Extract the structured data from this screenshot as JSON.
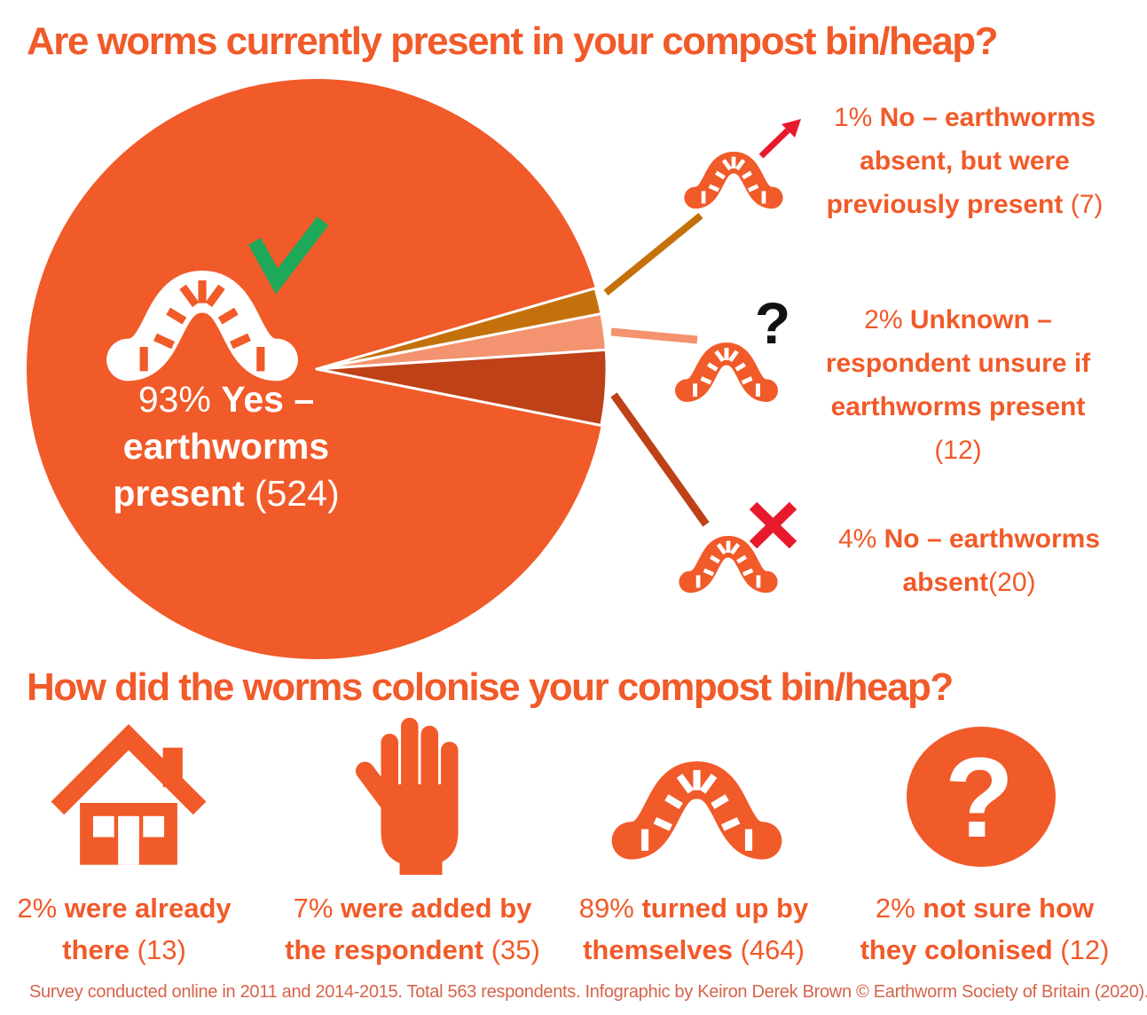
{
  "title1": "Are worms currently present in your compost bin/heap?",
  "title2": "How did the worms colonise your compost bin/heap?",
  "footer": "Survey conducted online in 2011 and 2014-2015. Total 563 respondents. Infographic by Keiron Derek Brown © Earthworm Society of Britain (2020).",
  "glyphs": {
    "question_mark": "?",
    "circle_question_mark": "?"
  },
  "colors": {
    "brand_orange": "#F15A29",
    "slice_amber": "#C4710C",
    "slice_salmon": "#F4936F",
    "slice_rust": "#BE4117",
    "check_green": "#1EA85A",
    "alert_red": "#E8192C",
    "footer_text": "#D5644A"
  },
  "pie_label": {
    "lines": [
      [
        {
          "t": "93% ",
          "b": 0
        },
        {
          "t": "Yes –",
          "b": 1
        }
      ],
      [
        {
          "t": "earthworms",
          "b": 1
        }
      ],
      [
        {
          "t": "present ",
          "b": 1
        },
        {
          "t": "(524)",
          "b": 0
        }
      ]
    ]
  },
  "callouts": [
    {
      "lines": [
        [
          {
            "t": "1% ",
            "b": 0
          },
          {
            "t": "No – earthworms",
            "b": 1
          }
        ],
        [
          {
            "t": "absent, but were",
            "b": 1
          }
        ],
        [
          {
            "t": "previously present ",
            "b": 1
          },
          {
            "t": "(7)",
            "b": 0
          }
        ]
      ]
    },
    {
      "lines": [
        [
          {
            "t": "2% ",
            "b": 0
          },
          {
            "t": "Unknown –",
            "b": 1
          }
        ],
        [
          {
            "t": "respondent unsure if",
            "b": 1
          }
        ],
        [
          {
            "t": "earthworms present",
            "b": 1
          }
        ],
        [
          {
            "t": "(12)",
            "b": 0
          }
        ]
      ]
    },
    {
      "lines": [
        [
          {
            "t": "4% ",
            "b": 0
          },
          {
            "t": "No – earthworms",
            "b": 1
          }
        ],
        [
          {
            "t": "absent",
            "b": 1
          },
          {
            "t": "(20)",
            "b": 0
          }
        ]
      ]
    }
  ],
  "captions": [
    {
      "lines": [
        [
          {
            "t": "2% ",
            "b": 0
          },
          {
            "t": "were already",
            "b": 1
          }
        ],
        [
          {
            "t": "there ",
            "b": 1
          },
          {
            "t": "(13)",
            "b": 0
          }
        ]
      ]
    },
    {
      "lines": [
        [
          {
            "t": "7% ",
            "b": 0
          },
          {
            "t": "were added by",
            "b": 1
          }
        ],
        [
          {
            "t": "the respondent ",
            "b": 1
          },
          {
            "t": "(35)",
            "b": 0
          }
        ]
      ]
    },
    {
      "lines": [
        [
          {
            "t": "89% ",
            "b": 0
          },
          {
            "t": "turned up by",
            "b": 1
          }
        ],
        [
          {
            "t": "themselves ",
            "b": 1
          },
          {
            "t": "(464)",
            "b": 0
          }
        ]
      ]
    },
    {
      "lines": [
        [
          {
            "t": "2% ",
            "b": 0
          },
          {
            "t": "not sure how",
            "b": 1
          }
        ],
        [
          {
            "t": "they colonised ",
            "b": 1
          },
          {
            "t": "(12)",
            "b": 0
          }
        ]
      ]
    }
  ],
  "chart_data": [
    {
      "type": "pie",
      "title": "Are worms currently present in your compost bin/heap?",
      "slices": [
        {
          "label": "Yes – earthworms present",
          "pct": 93,
          "count": 524,
          "color": "#F15A29"
        },
        {
          "label": "No – earthworms absent, but were previously present",
          "pct": 1,
          "count": 7,
          "color": "#C4710C"
        },
        {
          "label": "Unknown – respondent unsure if earthworms present",
          "pct": 2,
          "count": 12,
          "color": "#F4936F"
        },
        {
          "label": "No – earthworms absent",
          "pct": 4,
          "count": 20,
          "color": "#BE4117"
        }
      ],
      "total_respondents": 563,
      "legend_position": "right"
    },
    {
      "type": "pie",
      "title": "How did the worms colonise your compost bin/heap?",
      "slices": [
        {
          "label": "were already there",
          "pct": 2,
          "count": 13,
          "icon": "house-icon"
        },
        {
          "label": "were added by the respondent",
          "pct": 7,
          "count": 35,
          "icon": "hand-icon"
        },
        {
          "label": "turned up by themselves",
          "pct": 89,
          "count": 464,
          "icon": "worm-icon"
        },
        {
          "label": "not sure how they colonised",
          "pct": 2,
          "count": 12,
          "icon": "circle-question-icon"
        }
      ]
    }
  ]
}
